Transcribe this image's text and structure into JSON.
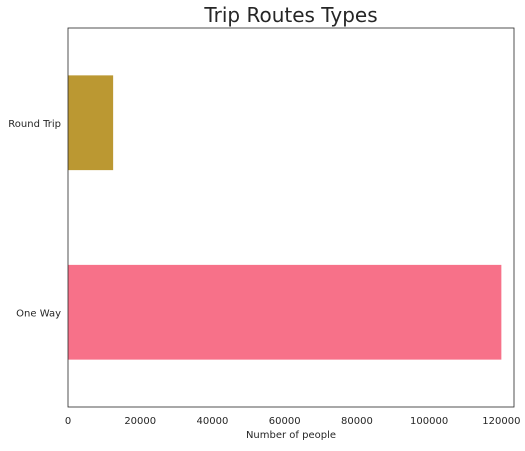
{
  "chart_data": {
    "type": "bar",
    "orientation": "horizontal",
    "title": "Trip Routes Types",
    "xlabel": "Number of people",
    "ylabel": "",
    "categories": [
      "One Way",
      "Round Trip"
    ],
    "values": [
      120000,
      12500
    ],
    "xlim": [
      0,
      123500
    ],
    "xticks": [
      0,
      20000,
      40000,
      60000,
      80000,
      100000,
      120000
    ],
    "colors": [
      "#f77189",
      "#bb9832"
    ],
    "grid": false,
    "legend": "none"
  }
}
